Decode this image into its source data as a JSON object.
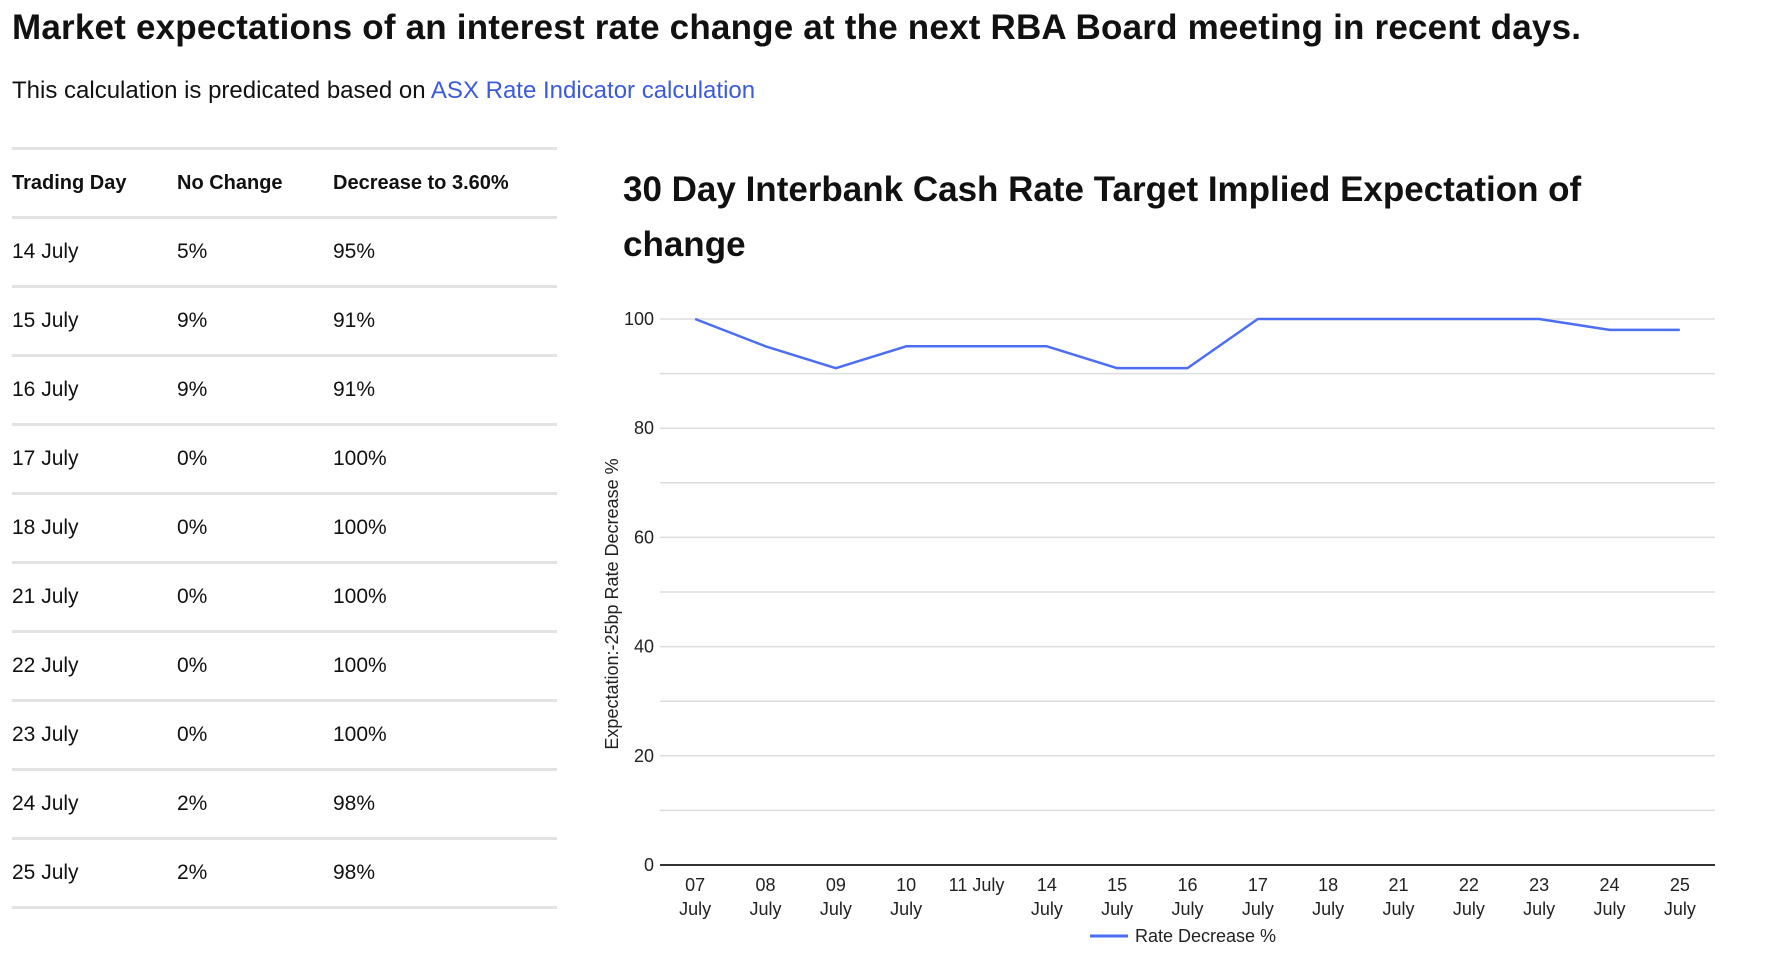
{
  "heading": "Market expectations of an interest rate change at the next RBA Board meeting in recent days.",
  "intro": {
    "text": "This calculation is predicated based on ",
    "link_text": "ASX Rate Indicator calculation"
  },
  "table": {
    "headers": [
      "Trading Day",
      "No Change",
      "Decrease to 3.60%"
    ],
    "rows": [
      [
        "14 July",
        "5%",
        "95%"
      ],
      [
        "15 July",
        "9%",
        "91%"
      ],
      [
        "16 July",
        "9%",
        "91%"
      ],
      [
        "17 July",
        "0%",
        "100%"
      ],
      [
        "18 July",
        "0%",
        "100%"
      ],
      [
        "21 July",
        "0%",
        "100%"
      ],
      [
        "22 July",
        "0%",
        "100%"
      ],
      [
        "23 July",
        "0%",
        "100%"
      ],
      [
        "24 July",
        "2%",
        "98%"
      ],
      [
        "25 July",
        "2%",
        "98%"
      ]
    ]
  },
  "chart_data": {
    "type": "line",
    "title": "30 Day Interbank Cash Rate Target Implied Expectation of change",
    "xlabel": "",
    "ylabel": "Expectation:-25bp Rate Decrease %",
    "categories": [
      "07 July",
      "08 July",
      "09 July",
      "10 July",
      "11 July",
      "14 July",
      "15 July",
      "16 July",
      "17 July",
      "18 July",
      "21 July",
      "22 July",
      "23 July",
      "24 July",
      "25 July"
    ],
    "series": [
      {
        "name": "Rate Decrease %",
        "color": "#4c6ef5",
        "values": [
          100,
          95,
          91,
          95,
          95,
          95,
          91,
          91,
          100,
          100,
          100,
          100,
          100,
          98,
          98
        ]
      }
    ],
    "ylim": [
      0,
      100
    ],
    "yticks": [
      0,
      20,
      40,
      60,
      80,
      100
    ],
    "grid": true,
    "legend": "bottom-center"
  }
}
